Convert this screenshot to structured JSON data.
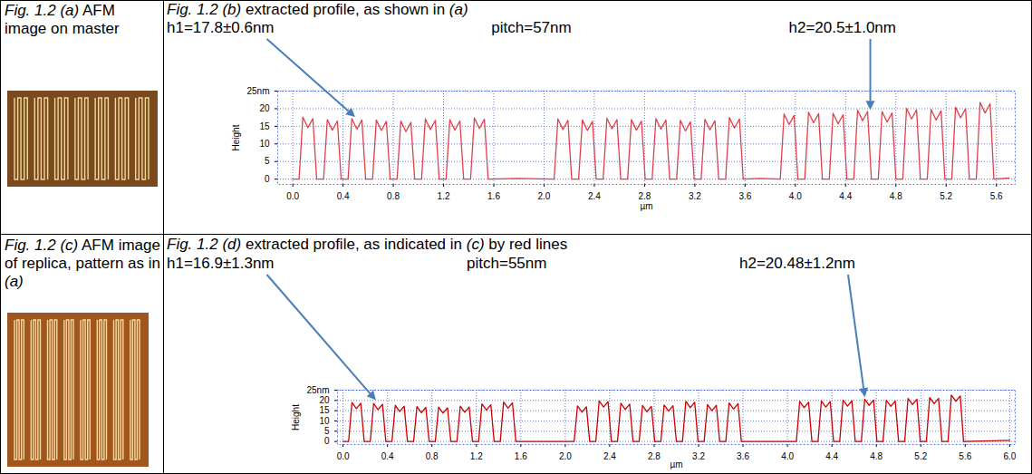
{
  "images": [
    {
      "caption": "Fig. 1.2 (a) AFM image on master"
    },
    {
      "caption": "Fig. 1.2 (c) AFM image of replica, pattern as in (a)"
    }
  ],
  "chart_data": [
    {
      "type": "line",
      "title": "Fig. 1.2 (b) extracted profile, as shown in (a)",
      "annotations": [
        {
          "text": "h1=17.8±0.6nm",
          "x": 0.5,
          "y": 17
        },
        {
          "text": "pitch=57nm"
        },
        {
          "text": "h2=20.5±1.0nm",
          "x": 4.6,
          "y": 19
        }
      ],
      "x_label": "µm",
      "y_label": "Height",
      "color": "#e0404c",
      "grid": true,
      "xlim": [
        -0.12,
        5.75
      ],
      "xticks": [
        {
          "value": 0,
          "label": "0.0"
        },
        0.4,
        0.8,
        1.2,
        1.6,
        {
          "value": 2,
          "label": "2.0"
        },
        2.4,
        2.8,
        3.2,
        3.6,
        {
          "value": 4,
          "label": "4.0"
        },
        4.4,
        4.8,
        5.2,
        5.6
      ],
      "ylim": [
        -1.5,
        25
      ],
      "yticks": [
        0,
        5,
        10,
        15,
        20,
        {
          "value": 25,
          "label": "25nm"
        }
      ],
      "x": [
        0,
        0.05,
        0.08,
        0.12,
        0.16,
        0.19,
        0.245,
        0.275,
        0.315,
        0.355,
        0.385,
        0.44,
        0.47,
        0.51,
        0.55,
        0.58,
        0.635,
        0.665,
        0.705,
        0.745,
        0.775,
        0.83,
        0.86,
        0.9,
        0.94,
        0.97,
        1.025,
        1.055,
        1.095,
        1.135,
        1.165,
        1.22,
        1.25,
        1.29,
        1.33,
        1.36,
        1.415,
        1.445,
        1.485,
        1.525,
        1.555,
        1.8,
        2.08,
        2.11,
        2.15,
        2.19,
        2.22,
        2.275,
        2.305,
        2.345,
        2.385,
        2.415,
        2.47,
        2.5,
        2.54,
        2.58,
        2.61,
        2.665,
        2.695,
        2.735,
        2.775,
        2.805,
        2.86,
        2.89,
        2.93,
        2.97,
        3.0,
        3.055,
        3.085,
        3.125,
        3.165,
        3.195,
        3.25,
        3.28,
        3.32,
        3.36,
        3.39,
        3.445,
        3.475,
        3.515,
        3.555,
        3.585,
        3.72,
        3.88,
        3.91,
        3.95,
        3.99,
        4.02,
        4.075,
        4.105,
        4.145,
        4.185,
        4.215,
        4.27,
        4.3,
        4.34,
        4.38,
        4.41,
        4.465,
        4.495,
        4.535,
        4.575,
        4.605,
        4.66,
        4.69,
        4.73,
        4.77,
        4.8,
        4.855,
        4.885,
        4.925,
        4.965,
        4.995,
        5.05,
        5.08,
        5.12,
        5.16,
        5.19,
        5.245,
        5.275,
        5.315,
        5.355,
        5.385,
        5.44,
        5.47,
        5.51,
        5.55,
        5.58,
        5.7
      ],
      "values": [
        0,
        0,
        17.6,
        14.6,
        17.2,
        0,
        0,
        16.9,
        13.9,
        16.5,
        0,
        0,
        17.2,
        14.2,
        16.8,
        0,
        0,
        16.8,
        13.8,
        16.4,
        0,
        0,
        16.5,
        13.5,
        16.1,
        0,
        0,
        17.1,
        14.1,
        16.7,
        0,
        0,
        16.9,
        13.9,
        16.5,
        0,
        0,
        17.4,
        14.4,
        17.0,
        0,
        0.2,
        0,
        17.1,
        14.1,
        16.7,
        0,
        0,
        16.8,
        13.8,
        16.4,
        0,
        0,
        17.3,
        14.3,
        16.9,
        0,
        0,
        16.9,
        13.9,
        16.5,
        0,
        0,
        17.2,
        14.2,
        16.8,
        0,
        0,
        16.7,
        13.7,
        16.3,
        0,
        0,
        17.0,
        14.0,
        16.6,
        0,
        0,
        17.5,
        14.5,
        17.1,
        0,
        0.2,
        0,
        18.5,
        15.5,
        18.1,
        0,
        0,
        19.0,
        16.0,
        18.6,
        0,
        0,
        18.7,
        15.7,
        18.3,
        0,
        0,
        19.6,
        16.6,
        19.2,
        0,
        0,
        19.2,
        16.2,
        18.8,
        0,
        0,
        20.1,
        17.1,
        19.7,
        0,
        0,
        19.8,
        16.8,
        19.4,
        0,
        0,
        20.4,
        17.4,
        20.0,
        0,
        0,
        21.8,
        18.8,
        21.4,
        0,
        0.3
      ]
    },
    {
      "type": "line",
      "title": "Fig. 1.2 (d) extracted profile, as indicated in (c) by red lines",
      "annotations": [
        {
          "text": "h1=16.9±1.3nm",
          "x": 0.3,
          "y": 19
        },
        {
          "text": "pitch=55nm"
        },
        {
          "text": "h2=20.48±1.2nm",
          "x": 4.7,
          "y": 20.5
        }
      ],
      "x_label": "µm",
      "y_label": "Height",
      "color": "#cc0000",
      "grid": true,
      "xlim": [
        -0.05,
        6.05
      ],
      "xticks": [
        {
          "value": 0,
          "label": "0.0"
        },
        0.4,
        0.8,
        1.2,
        1.6,
        {
          "value": 2,
          "label": "2.0"
        },
        2.4,
        2.8,
        3.2,
        3.6,
        {
          "value": 4,
          "label": "4.0"
        },
        4.4,
        4.8,
        5.2,
        5.6,
        {
          "value": 6,
          "label": "6.0"
        }
      ],
      "ylim": [
        -1.5,
        25
      ],
      "yticks": [
        0,
        5,
        10,
        15,
        20,
        {
          "value": 25,
          "label": "25nm"
        }
      ],
      "x": [
        0,
        0.05,
        0.08,
        0.12,
        0.16,
        0.19,
        0.245,
        0.275,
        0.315,
        0.355,
        0.385,
        0.44,
        0.47,
        0.51,
        0.55,
        0.58,
        0.635,
        0.665,
        0.705,
        0.745,
        0.775,
        0.83,
        0.86,
        0.9,
        0.94,
        0.97,
        1.025,
        1.055,
        1.095,
        1.135,
        1.165,
        1.22,
        1.25,
        1.29,
        1.33,
        1.36,
        1.415,
        1.445,
        1.485,
        1.525,
        1.555,
        1.8,
        2.08,
        2.11,
        2.15,
        2.19,
        2.22,
        2.275,
        2.305,
        2.345,
        2.385,
        2.415,
        2.47,
        2.5,
        2.54,
        2.58,
        2.61,
        2.665,
        2.695,
        2.735,
        2.775,
        2.805,
        2.86,
        2.89,
        2.93,
        2.97,
        3.0,
        3.055,
        3.085,
        3.125,
        3.165,
        3.195,
        3.25,
        3.28,
        3.32,
        3.36,
        3.39,
        3.445,
        3.475,
        3.515,
        3.555,
        3.585,
        3.85,
        4.08,
        4.11,
        4.15,
        4.19,
        4.22,
        4.275,
        4.305,
        4.345,
        4.385,
        4.415,
        4.47,
        4.5,
        4.54,
        4.58,
        4.61,
        4.665,
        4.695,
        4.735,
        4.775,
        4.805,
        4.86,
        4.89,
        4.93,
        4.97,
        5.0,
        5.055,
        5.085,
        5.125,
        5.165,
        5.195,
        5.25,
        5.28,
        5.32,
        5.36,
        5.39,
        5.445,
        5.475,
        5.515,
        5.555,
        5.585,
        6.0
      ],
      "values": [
        0,
        0,
        19.0,
        16.0,
        18.6,
        0,
        0,
        18.5,
        15.5,
        18.1,
        0,
        0,
        17.6,
        14.6,
        17.2,
        0,
        0,
        17.0,
        14.0,
        16.6,
        0,
        0,
        16.8,
        13.8,
        16.4,
        0,
        0,
        17.2,
        14.2,
        16.8,
        0,
        0,
        18.3,
        15.3,
        17.9,
        0,
        0,
        19.2,
        16.2,
        18.8,
        0,
        0,
        0,
        17.3,
        14.3,
        16.9,
        0,
        0,
        19.8,
        16.8,
        19.4,
        0,
        0,
        18.6,
        15.6,
        18.2,
        0,
        0,
        17.5,
        14.5,
        17.1,
        0,
        0,
        17.8,
        14.8,
        17.4,
        0,
        0,
        19.5,
        16.5,
        19.1,
        0,
        0,
        18.0,
        15.0,
        17.6,
        0,
        0,
        18.8,
        15.8,
        18.4,
        0,
        0,
        0,
        19.5,
        16.5,
        19.1,
        0,
        0,
        19.8,
        16.8,
        19.4,
        0,
        0,
        20.2,
        17.2,
        19.8,
        0,
        0,
        20.6,
        17.6,
        20.2,
        0,
        0,
        20.1,
        17.1,
        19.7,
        0,
        0,
        21.0,
        18.0,
        20.6,
        0,
        0,
        21.4,
        18.4,
        21.0,
        0,
        0,
        22.6,
        19.6,
        22.2,
        0,
        0.5
      ]
    }
  ]
}
